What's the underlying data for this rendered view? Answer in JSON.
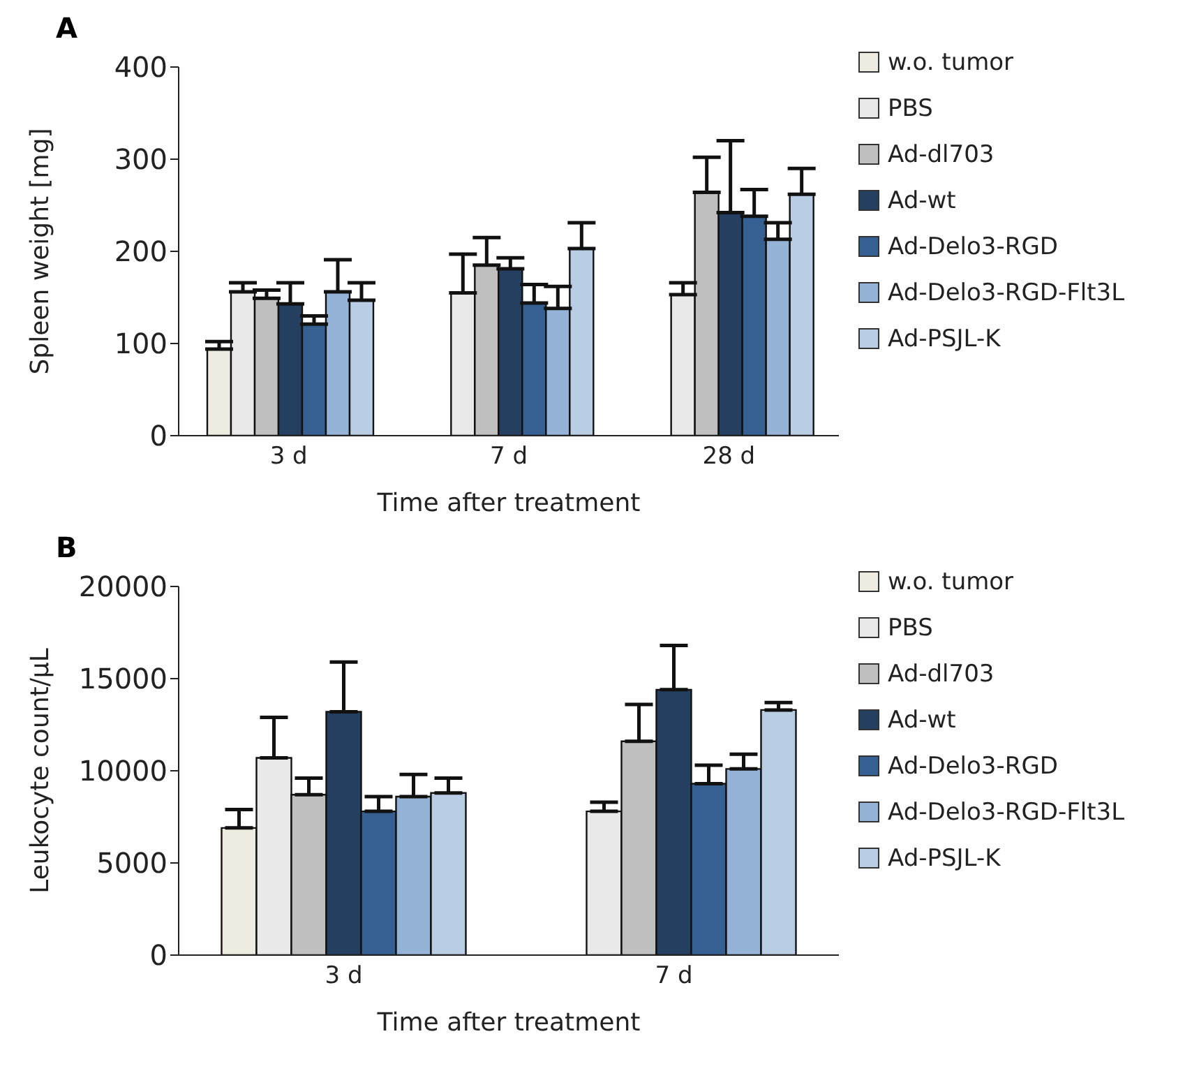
{
  "chart_data": [
    {
      "type": "bar",
      "title": "A",
      "xlabel": "Time after treatment",
      "ylabel": "Spleen weight [mg]",
      "categories": [
        "3 d",
        "7 d",
        "28 d"
      ],
      "ylim": [
        0,
        400
      ],
      "yticks": [
        0,
        100,
        200,
        300,
        400
      ],
      "grid": false,
      "legend": "top right",
      "series": [
        {
          "name": "w.o. tumor",
          "color": "#eeece1",
          "values": [
            94,
            null,
            null
          ],
          "errors": [
            [
              94,
              102
            ],
            null,
            null
          ]
        },
        {
          "name": "PBS",
          "color": "#e9e9e9",
          "values": [
            156,
            155,
            153
          ],
          "errors": [
            [
              156,
              166
            ],
            [
              155,
              197
            ],
            [
              153,
              166
            ]
          ]
        },
        {
          "name": "Ad-dl703",
          "color": "#bfbfbf",
          "values": [
            149,
            185,
            264
          ],
          "errors": [
            [
              149,
              158
            ],
            [
              185,
              215
            ],
            [
              264,
              302
            ]
          ]
        },
        {
          "name": "Ad-wt",
          "color": "#243f60",
          "values": [
            143,
            181,
            242
          ],
          "errors": [
            [
              143,
              166
            ],
            [
              181,
              193
            ],
            [
              242,
              320
            ]
          ]
        },
        {
          "name": "Ad-Delo3-RGD",
          "color": "#376092",
          "values": [
            121,
            144,
            238
          ],
          "errors": [
            [
              121,
              130
            ],
            [
              144,
              164
            ],
            [
              238,
              267
            ]
          ]
        },
        {
          "name": "Ad-Delo3-RGD-Flt3L",
          "color": "#95b3d7",
          "values": [
            156,
            138,
            213
          ],
          "errors": [
            [
              156,
              191
            ],
            [
              138,
              162
            ],
            [
              213,
              231
            ]
          ]
        },
        {
          "name": "Ad-PSJL-K",
          "color": "#b9cde5",
          "values": [
            147,
            203,
            262
          ],
          "errors": [
            [
              147,
              166
            ],
            [
              203,
              231
            ],
            [
              262,
              290
            ]
          ]
        }
      ]
    },
    {
      "type": "bar",
      "title": "B",
      "xlabel": "Time after treatment",
      "ylabel": "Leukocyte count/µL",
      "categories": [
        "3 d",
        "7 d"
      ],
      "ylim": [
        0,
        20000
      ],
      "yticks": [
        0,
        5000,
        10000,
        15000,
        20000
      ],
      "grid": false,
      "legend": "top right",
      "series": [
        {
          "name": "w.o. tumor",
          "color": "#eeece1",
          "values": [
            6900,
            null
          ],
          "errors": [
            [
              6900,
              7900
            ],
            null
          ]
        },
        {
          "name": "PBS",
          "color": "#e9e9e9",
          "values": [
            10700,
            7800
          ],
          "errors": [
            [
              10700,
              12900
            ],
            [
              7800,
              8300
            ]
          ]
        },
        {
          "name": "Ad-dl703",
          "color": "#bfbfbf",
          "values": [
            8700,
            11600
          ],
          "errors": [
            [
              8700,
              9600
            ],
            [
              11600,
              13600
            ]
          ]
        },
        {
          "name": "Ad-wt",
          "color": "#243f60",
          "values": [
            13200,
            14400
          ],
          "errors": [
            [
              13200,
              15900
            ],
            [
              14400,
              16800
            ]
          ]
        },
        {
          "name": "Ad-Delo3-RGD",
          "color": "#376092",
          "values": [
            7800,
            9300
          ],
          "errors": [
            [
              7800,
              8600
            ],
            [
              9300,
              10300
            ]
          ]
        },
        {
          "name": "Ad-Delo3-RGD-Flt3L",
          "color": "#95b3d7",
          "values": [
            8600,
            10100
          ],
          "errors": [
            [
              8600,
              9800
            ],
            [
              10100,
              10900
            ]
          ]
        },
        {
          "name": "Ad-PSJL-K",
          "color": "#b9cde5",
          "values": [
            8800,
            13300
          ],
          "errors": [
            [
              8800,
              9600
            ],
            [
              13300,
              13700
            ]
          ]
        }
      ]
    }
  ]
}
